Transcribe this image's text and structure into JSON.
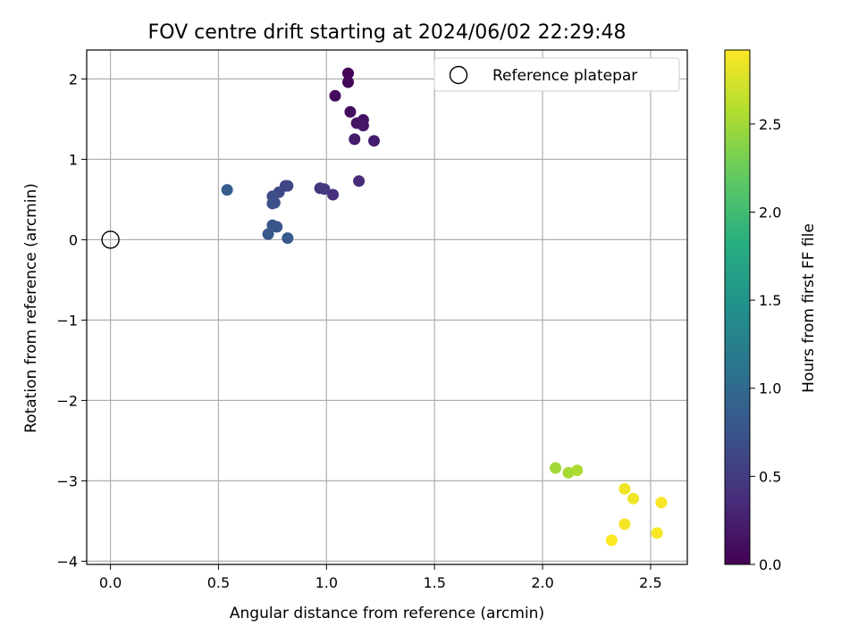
{
  "chart_data": {
    "type": "scatter",
    "title": "FOV centre drift starting at 2024/06/02 22:29:48",
    "xlabel": "Angular distance from reference (arcmin)",
    "ylabel": "Rotation from reference (arcmin)",
    "xlim": [
      -0.11,
      2.67
    ],
    "ylim": [
      -4.04,
      2.36
    ],
    "xticks": [
      0.0,
      0.5,
      1.0,
      1.5,
      2.0,
      2.5
    ],
    "xtick_labels": [
      "0.0",
      "0.5",
      "1.0",
      "1.5",
      "2.0",
      "2.5"
    ],
    "yticks": [
      -4,
      -3,
      -2,
      -1,
      0,
      1,
      2
    ],
    "ytick_labels": [
      "−4",
      "−3",
      "−2",
      "−1",
      "0",
      "1",
      "2"
    ],
    "grid": true,
    "legend": {
      "position": "top-right",
      "entries": [
        "Reference platepar"
      ]
    },
    "reference_point": {
      "x": 0.0,
      "y": 0.0,
      "name": "Reference platepar"
    },
    "colorbar": {
      "label": "Hours from first FF file",
      "colormap": "viridis",
      "range": [
        0.0,
        2.92
      ],
      "ticks": [
        0.0,
        0.5,
        1.0,
        1.5,
        2.0,
        2.5
      ],
      "tick_labels": [
        "0.0",
        "0.5",
        "1.0",
        "1.5",
        "2.0",
        "2.5"
      ]
    },
    "points": [
      {
        "x": 1.1,
        "y": 2.07,
        "c": 0.02
      },
      {
        "x": 1.1,
        "y": 1.96,
        "c": 0.05
      },
      {
        "x": 1.04,
        "y": 1.79,
        "c": 0.08
      },
      {
        "x": 1.11,
        "y": 1.59,
        "c": 0.1
      },
      {
        "x": 1.17,
        "y": 1.49,
        "c": 0.13
      },
      {
        "x": 1.14,
        "y": 1.45,
        "c": 0.15
      },
      {
        "x": 1.17,
        "y": 1.42,
        "c": 0.18
      },
      {
        "x": 1.13,
        "y": 1.25,
        "c": 0.2
      },
      {
        "x": 1.22,
        "y": 1.23,
        "c": 0.22
      },
      {
        "x": 1.15,
        "y": 0.73,
        "c": 0.35
      },
      {
        "x": 1.03,
        "y": 0.56,
        "c": 0.4
      },
      {
        "x": 0.97,
        "y": 0.64,
        "c": 0.45
      },
      {
        "x": 0.99,
        "y": 0.63,
        "c": 0.48
      },
      {
        "x": 0.81,
        "y": 0.67,
        "c": 0.6
      },
      {
        "x": 0.82,
        "y": 0.67,
        "c": 0.62
      },
      {
        "x": 0.78,
        "y": 0.59,
        "c": 0.65
      },
      {
        "x": 0.75,
        "y": 0.54,
        "c": 0.68
      },
      {
        "x": 0.75,
        "y": 0.45,
        "c": 0.7
      },
      {
        "x": 0.76,
        "y": 0.46,
        "c": 0.72
      },
      {
        "x": 0.54,
        "y": 0.62,
        "c": 0.85
      },
      {
        "x": 0.75,
        "y": 0.18,
        "c": 0.75
      },
      {
        "x": 0.77,
        "y": 0.16,
        "c": 0.78
      },
      {
        "x": 0.73,
        "y": 0.07,
        "c": 0.8
      },
      {
        "x": 0.82,
        "y": 0.02,
        "c": 0.82
      },
      {
        "x": 2.06,
        "y": -2.84,
        "c": 2.5
      },
      {
        "x": 2.12,
        "y": -2.9,
        "c": 2.52
      },
      {
        "x": 2.16,
        "y": -2.87,
        "c": 2.55
      },
      {
        "x": 2.38,
        "y": -3.1,
        "c": 2.85
      },
      {
        "x": 2.42,
        "y": -3.22,
        "c": 2.85
      },
      {
        "x": 2.55,
        "y": -3.27,
        "c": 2.9
      },
      {
        "x": 2.38,
        "y": -3.54,
        "c": 2.88
      },
      {
        "x": 2.53,
        "y": -3.65,
        "c": 2.9
      },
      {
        "x": 2.32,
        "y": -3.74,
        "c": 2.92
      }
    ]
  }
}
